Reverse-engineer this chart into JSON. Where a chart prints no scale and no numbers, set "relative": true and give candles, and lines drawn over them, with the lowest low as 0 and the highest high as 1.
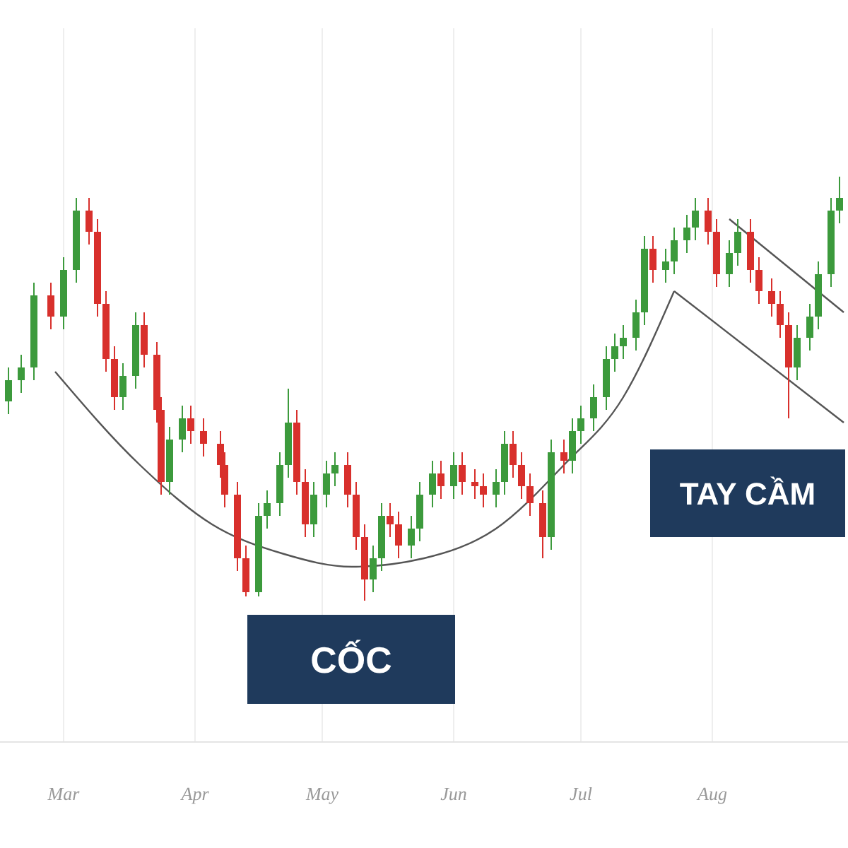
{
  "chart_data": {
    "type": "candlestick",
    "relative": true,
    "grid": "x",
    "x": [
      "--02-16",
      "--02-19",
      "--02-22",
      "--02-26",
      "--03-01",
      "--03-04",
      "--03-07",
      "--03-09",
      "--03-11",
      "--03-13",
      "--03-15",
      "--03-18",
      "--03-20",
      "--03-23",
      "--03-24",
      "--03-26",
      "--03-29",
      "--03-31",
      "--04-03",
      "--04-07",
      "--04-08",
      "--04-11",
      "--04-13",
      "--04-16",
      "--04-18",
      "--04-21",
      "--04-23",
      "--04-25",
      "--04-27",
      "--04-29",
      "--05-02",
      "--05-04",
      "--05-07",
      "--05-09",
      "--05-11",
      "--05-13",
      "--05-15",
      "--05-17",
      "--05-19",
      "--05-22",
      "--05-24",
      "--05-27",
      "--05-29",
      "--06-01",
      "--06-03",
      "--06-06",
      "--06-08",
      "--06-11",
      "--06-13",
      "--06-15",
      "--06-17",
      "--06-19",
      "--06-22",
      "--06-24",
      "--06-27",
      "--06-29",
      "--07-01",
      "--07-04",
      "--07-07",
      "--07-09",
      "--07-11",
      "--07-14",
      "--07-16",
      "--07-18",
      "--07-21",
      "--07-23",
      "--07-26",
      "--07-28",
      "--07-31",
      "--08-02",
      "--08-05",
      "--08-07",
      "--08-10",
      "--08-12",
      "--08-15",
      "--08-17",
      "--08-19",
      "--08-21",
      "--08-24",
      "--08-26",
      "--08-29",
      "--08-31"
    ],
    "ohlc": [
      [
        0.47,
        0.55,
        0.44,
        0.52
      ],
      [
        0.52,
        0.58,
        0.49,
        0.55
      ],
      [
        0.55,
        0.75,
        0.52,
        0.72
      ],
      [
        0.72,
        0.75,
        0.64,
        0.67
      ],
      [
        0.67,
        0.81,
        0.64,
        0.78
      ],
      [
        0.78,
        0.95,
        0.75,
        0.92
      ],
      [
        0.92,
        0.95,
        0.84,
        0.87
      ],
      [
        0.87,
        0.9,
        0.67,
        0.7
      ],
      [
        0.7,
        0.73,
        0.54,
        0.57
      ],
      [
        0.57,
        0.6,
        0.45,
        0.48
      ],
      [
        0.48,
        0.56,
        0.45,
        0.53
      ],
      [
        0.53,
        0.68,
        0.5,
        0.65
      ],
      [
        0.65,
        0.68,
        0.55,
        0.58
      ],
      [
        0.58,
        0.61,
        0.42,
        0.45
      ],
      [
        0.45,
        0.48,
        0.25,
        0.28
      ],
      [
        0.28,
        0.41,
        0.25,
        0.38
      ],
      [
        0.38,
        0.46,
        0.35,
        0.43
      ],
      [
        0.43,
        0.46,
        0.37,
        0.4
      ],
      [
        0.4,
        0.43,
        0.34,
        0.37
      ],
      [
        0.37,
        0.4,
        0.29,
        0.32
      ],
      [
        0.32,
        0.35,
        0.22,
        0.25
      ],
      [
        0.25,
        0.28,
        0.07,
        0.1
      ],
      [
        0.1,
        0.13,
        0.01,
        0.02
      ],
      [
        0.02,
        0.23,
        0.01,
        0.2
      ],
      [
        0.2,
        0.26,
        0.17,
        0.23
      ],
      [
        0.23,
        0.35,
        0.2,
        0.32
      ],
      [
        0.32,
        0.5,
        0.29,
        0.42
      ],
      [
        0.42,
        0.45,
        0.25,
        0.28
      ],
      [
        0.28,
        0.31,
        0.15,
        0.18
      ],
      [
        0.18,
        0.28,
        0.15,
        0.25
      ],
      [
        0.25,
        0.33,
        0.22,
        0.3
      ],
      [
        0.3,
        0.35,
        0.27,
        0.32
      ],
      [
        0.32,
        0.35,
        0.22,
        0.25
      ],
      [
        0.25,
        0.28,
        0.12,
        0.15
      ],
      [
        0.15,
        0.18,
        0.0,
        0.05
      ],
      [
        0.05,
        0.13,
        0.02,
        0.1
      ],
      [
        0.1,
        0.23,
        0.07,
        0.2
      ],
      [
        0.2,
        0.23,
        0.15,
        0.18
      ],
      [
        0.18,
        0.21,
        0.1,
        0.13
      ],
      [
        0.13,
        0.2,
        0.1,
        0.17
      ],
      [
        0.17,
        0.28,
        0.14,
        0.25
      ],
      [
        0.25,
        0.33,
        0.22,
        0.3
      ],
      [
        0.3,
        0.33,
        0.24,
        0.27
      ],
      [
        0.27,
        0.35,
        0.24,
        0.32
      ],
      [
        0.32,
        0.35,
        0.25,
        0.28
      ],
      [
        0.28,
        0.31,
        0.24,
        0.27
      ],
      [
        0.27,
        0.3,
        0.22,
        0.25
      ],
      [
        0.25,
        0.31,
        0.22,
        0.28
      ],
      [
        0.28,
        0.4,
        0.25,
        0.37
      ],
      [
        0.37,
        0.4,
        0.29,
        0.32
      ],
      [
        0.32,
        0.35,
        0.24,
        0.27
      ],
      [
        0.27,
        0.3,
        0.2,
        0.23
      ],
      [
        0.23,
        0.26,
        0.1,
        0.15
      ],
      [
        0.15,
        0.38,
        0.12,
        0.35
      ],
      [
        0.35,
        0.38,
        0.3,
        0.33
      ],
      [
        0.33,
        0.43,
        0.3,
        0.4
      ],
      [
        0.4,
        0.46,
        0.37,
        0.43
      ],
      [
        0.43,
        0.51,
        0.4,
        0.48
      ],
      [
        0.48,
        0.6,
        0.45,
        0.57
      ],
      [
        0.57,
        0.63,
        0.54,
        0.6
      ],
      [
        0.6,
        0.65,
        0.57,
        0.62
      ],
      [
        0.62,
        0.71,
        0.59,
        0.68
      ],
      [
        0.68,
        0.86,
        0.65,
        0.83
      ],
      [
        0.83,
        0.86,
        0.75,
        0.78
      ],
      [
        0.78,
        0.83,
        0.75,
        0.8
      ],
      [
        0.8,
        0.88,
        0.77,
        0.85
      ],
      [
        0.85,
        0.91,
        0.82,
        0.88
      ],
      [
        0.88,
        0.95,
        0.85,
        0.92
      ],
      [
        0.92,
        0.95,
        0.84,
        0.87
      ],
      [
        0.87,
        0.9,
        0.74,
        0.77
      ],
      [
        0.77,
        0.85,
        0.74,
        0.82
      ],
      [
        0.82,
        0.9,
        0.79,
        0.87
      ],
      [
        0.87,
        0.9,
        0.75,
        0.78
      ],
      [
        0.78,
        0.81,
        0.7,
        0.73
      ],
      [
        0.73,
        0.76,
        0.67,
        0.7
      ],
      [
        0.7,
        0.73,
        0.62,
        0.65
      ],
      [
        0.65,
        0.68,
        0.43,
        0.55
      ],
      [
        0.55,
        0.65,
        0.52,
        0.62
      ],
      [
        0.62,
        0.7,
        0.59,
        0.67
      ],
      [
        0.67,
        0.8,
        0.64,
        0.77
      ],
      [
        0.77,
        0.95,
        0.74,
        0.92
      ],
      [
        0.92,
        1.0,
        0.89,
        0.95
      ]
    ],
    "xlim": [
      "--02-14",
      "--09-02"
    ],
    "xticks": [
      {
        "value": "--03-01",
        "label": "Mar"
      },
      {
        "value": "--04-01",
        "label": "Apr"
      },
      {
        "value": "--05-01",
        "label": "May"
      },
      {
        "value": "--06-01",
        "label": "Jun"
      },
      {
        "value": "--07-01",
        "label": "Jul"
      },
      {
        "value": "--08-01",
        "label": "Aug"
      }
    ],
    "series": [
      {
        "type": "line",
        "color": "#555555",
        "x": [
          "--02-27",
          "--03-19",
          "--04-05",
          "--04-22",
          "--05-08",
          "--05-25",
          "--06-11",
          "--06-27",
          "--07-11",
          "--07-23"
        ],
        "values": [
          0.54,
          0.32,
          0.18,
          0.11,
          0.08,
          0.1,
          0.17,
          0.32,
          0.48,
          0.73
        ]
      },
      {
        "type": "line",
        "color": "#555555",
        "x": [
          "--07-23",
          "--09-01"
        ],
        "values": [
          0.73,
          0.42
        ]
      },
      {
        "type": "line",
        "color": "#555555",
        "x": [
          "--08-05",
          "--09-01"
        ],
        "values": [
          0.9,
          0.68
        ]
      }
    ],
    "annotations": [
      "CỐC",
      "TAY CẦM"
    ]
  }
}
